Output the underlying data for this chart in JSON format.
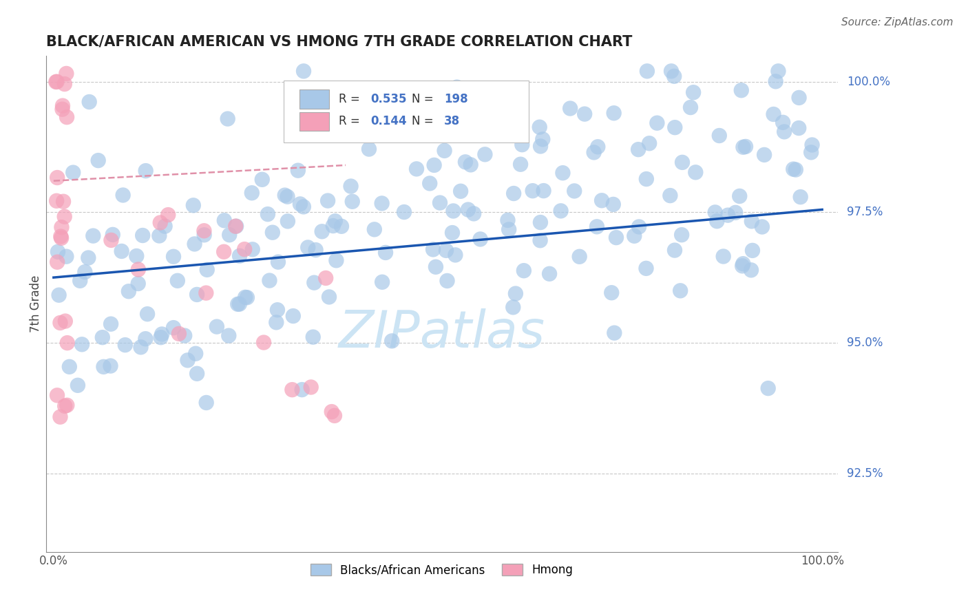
{
  "title": "BLACK/AFRICAN AMERICAN VS HMONG 7TH GRADE CORRELATION CHART",
  "source_text": "Source: ZipAtlas.com",
  "ylabel": "7th Grade",
  "r_blue": 0.535,
  "n_blue": 198,
  "r_pink": 0.144,
  "n_pink": 38,
  "blue_color": "#a8c8e8",
  "pink_color": "#f4a0b8",
  "line_color": "#1a56b0",
  "dashed_line_color": "#e090a8",
  "watermark_color": "#cce4f4",
  "legend_blue_label": "Blacks/African Americans",
  "legend_pink_label": "Hmong",
  "xlim": [
    0.0,
    1.0
  ],
  "ylim": [
    0.91,
    1.005
  ],
  "ytick_values": [
    0.925,
    0.95,
    0.975,
    1.0
  ],
  "ytick_labels": [
    "92.5%",
    "95.0%",
    "97.5%",
    "100.0%"
  ],
  "blue_trend_x": [
    0.0,
    1.0
  ],
  "blue_trend_y": [
    0.9625,
    0.9755
  ],
  "pink_trend_x": [
    0.0,
    0.38
  ],
  "pink_trend_y": [
    0.981,
    0.984
  ],
  "label_color": "#4472c4",
  "grid_color": "#c8c8c8",
  "axis_color": "#888888"
}
